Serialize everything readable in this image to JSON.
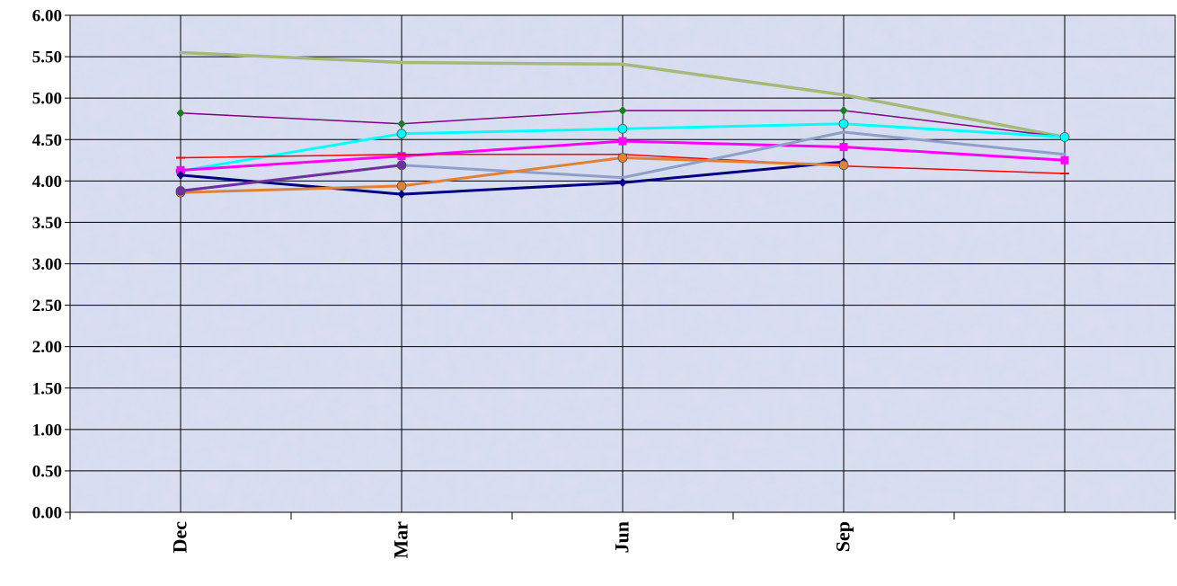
{
  "chart_data": {
    "type": "line",
    "title": "",
    "xlabel": "",
    "ylabel": "",
    "categories": [
      "Dec",
      "Mar",
      "Jun",
      "Sep",
      ""
    ],
    "ylim": [
      0,
      6
    ],
    "yticks": [
      "0.00",
      "0.50",
      "1.00",
      "1.50",
      "2.00",
      "2.50",
      "3.00",
      "3.50",
      "4.00",
      "4.50",
      "5.00",
      "5.50",
      "6.00"
    ],
    "grid": true,
    "legend": "none",
    "plot_background": "#d6ddf0",
    "series": [
      {
        "color": "#a6b87c",
        "width": 3.5,
        "marker": "none",
        "values": [
          5.55,
          5.43,
          5.41,
          5.04,
          4.53
        ]
      },
      {
        "color": "#800080",
        "width": 1.5,
        "marker": "diamond",
        "marker_color": "#1e7a2a",
        "values": [
          4.82,
          4.69,
          4.85,
          4.85,
          4.53
        ]
      },
      {
        "color": "#00ffff",
        "width": 3,
        "marker": "circle",
        "values": [
          4.12,
          4.57,
          4.63,
          4.69,
          4.53
        ]
      },
      {
        "color": "#ff00ff",
        "width": 3,
        "marker": "square",
        "values": [
          4.13,
          4.3,
          4.48,
          4.41,
          4.25
        ]
      },
      {
        "color": "#ff0000",
        "width": 1.5,
        "marker": "dash",
        "values": [
          4.28,
          4.32,
          4.32,
          4.18,
          4.09
        ]
      },
      {
        "color": "#8fa0c8",
        "width": 3,
        "marker": "none",
        "values": [
          3.88,
          4.19,
          4.04,
          4.59,
          4.32
        ]
      },
      {
        "color": "#000080",
        "width": 3,
        "marker": "diamond",
        "values": [
          4.07,
          3.84,
          3.98,
          4.23,
          null
        ]
      },
      {
        "color": "#e0813a",
        "width": 3,
        "marker": "circle",
        "values": [
          3.86,
          3.94,
          4.28,
          4.19,
          null
        ]
      },
      {
        "color": "#7030a0",
        "width": 3,
        "marker": "circle",
        "values": [
          3.88,
          4.19,
          null,
          null,
          null
        ]
      }
    ]
  }
}
